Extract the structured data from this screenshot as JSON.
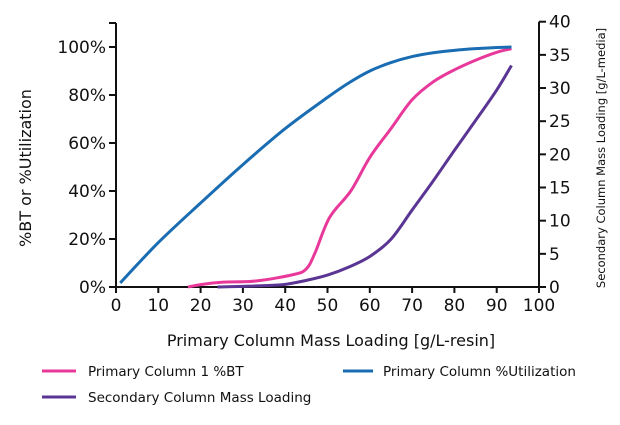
{
  "chart_data": {
    "type": "line",
    "xlabel": "Primary Column Mass Loading [g/L-resin]",
    "ylabel": "%BT or %Utilization",
    "y2label": "Secondary Column Mass Loading [g/L-media]",
    "xlim": [
      0,
      100
    ],
    "ylim": [
      0,
      110
    ],
    "y2lim": [
      0,
      40
    ],
    "xticks": [
      "0",
      "10",
      "20",
      "30",
      "40",
      "50",
      "60",
      "70",
      "80",
      "90",
      "100"
    ],
    "yticks": [
      "0%",
      "20%",
      "40%",
      "60%",
      "80%",
      "100%"
    ],
    "y2ticks": [
      "0",
      "5",
      "10",
      "15",
      "20",
      "25",
      "30",
      "35",
      "40"
    ],
    "grid": false,
    "legend_position": "bottom",
    "series": [
      {
        "name": "Primary Column 1 %BT",
        "axis": "left",
        "color": "#e8399b",
        "x": [
          17,
          20,
          25,
          33,
          42,
          45,
          47,
          50.5,
          55.5,
          60,
          65,
          70,
          75,
          80,
          85,
          90,
          93.5
        ],
        "y": [
          0,
          1,
          2,
          2.5,
          5.2,
          7.6,
          14,
          29,
          40,
          54,
          66,
          78,
          85.5,
          90.5,
          94.5,
          97.8,
          99.3
        ]
      },
      {
        "name": "Primary Column %Utilization",
        "axis": "left",
        "color": "#1a6db3",
        "x": [
          1,
          10,
          20,
          30,
          40,
          50,
          55,
          60,
          65,
          70,
          75,
          80,
          85,
          90,
          93.5
        ],
        "y": [
          1.7,
          18.5,
          35,
          51,
          66,
          79,
          85,
          90,
          93.5,
          96,
          97.6,
          98.6,
          99.3,
          99.8,
          100
        ]
      },
      {
        "name": "Secondary Column Mass Loading",
        "axis": "right",
        "color": "#5a3594",
        "x": [
          24,
          30,
          35,
          40,
          45,
          50,
          55,
          60,
          65,
          70,
          75,
          80,
          85,
          90,
          93.5
        ],
        "y": [
          0,
          0.1,
          0.2,
          0.4,
          1.0,
          1.8,
          3.0,
          4.6,
          7.2,
          11.6,
          16.0,
          20.6,
          25.1,
          29.7,
          33.4
        ]
      }
    ]
  }
}
